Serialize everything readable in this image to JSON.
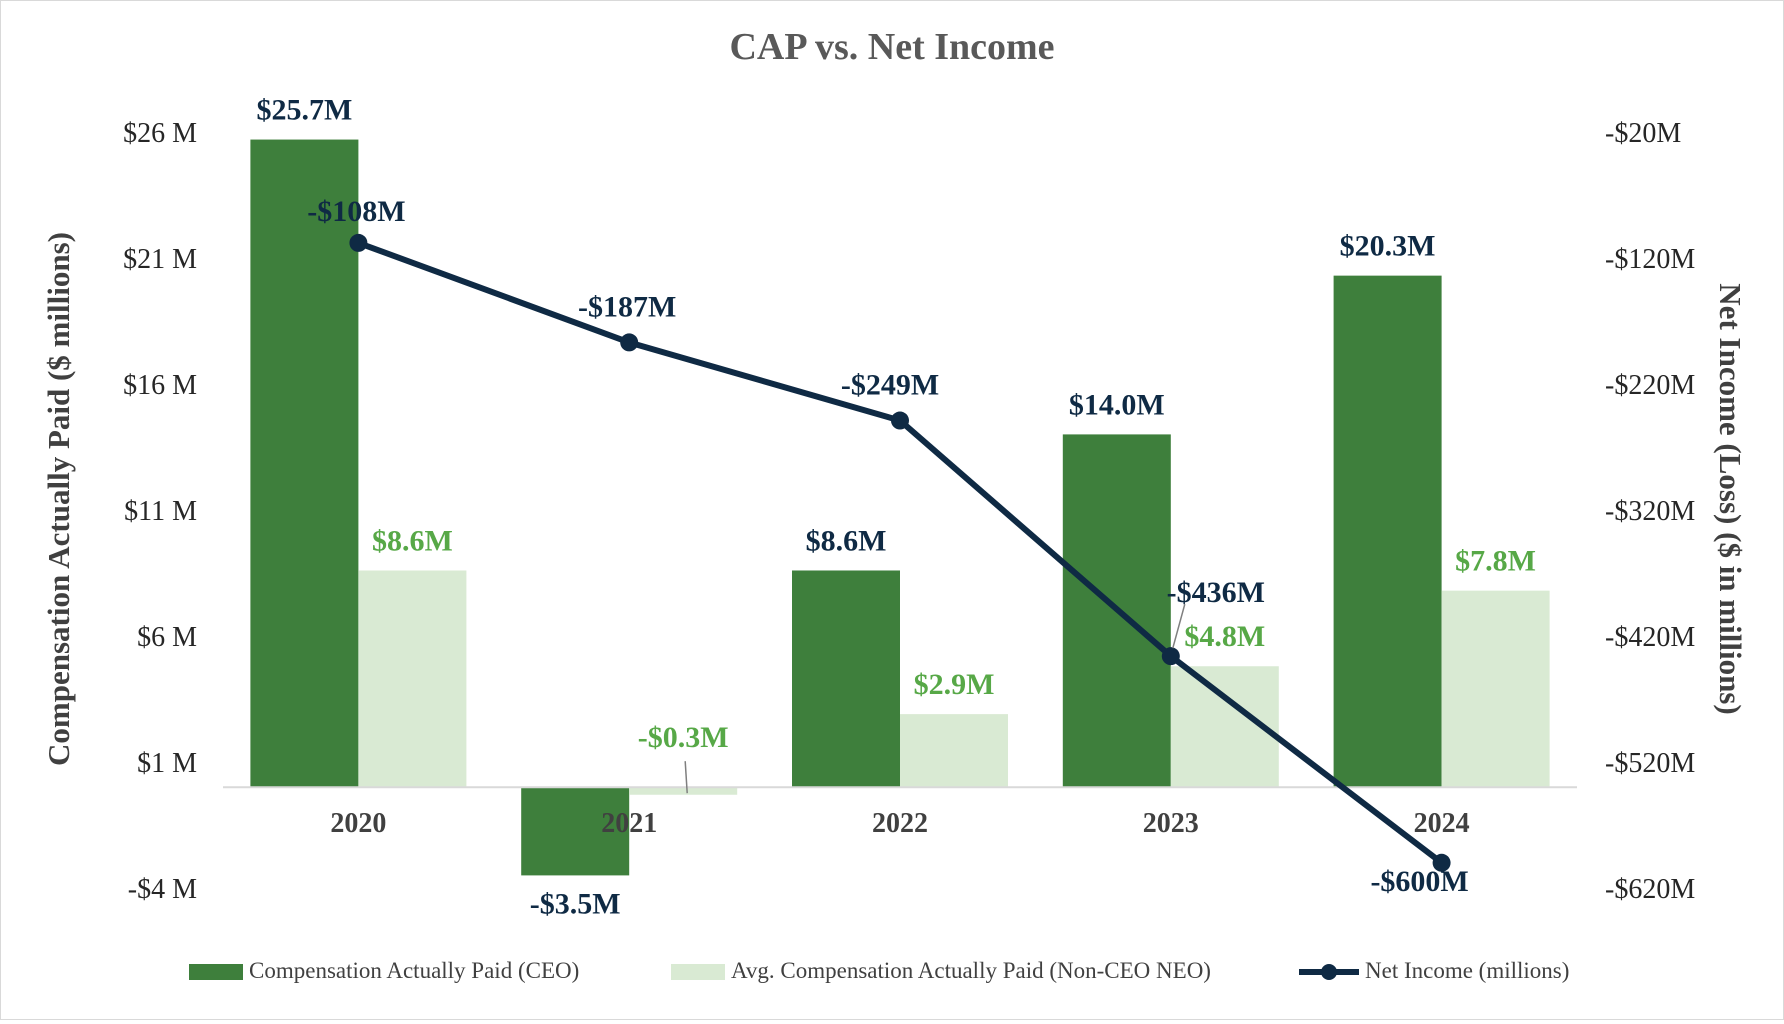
{
  "chart_data": {
    "type": "bar+line",
    "title": "CAP vs. Net Income",
    "categories": [
      "2020",
      "2021",
      "2022",
      "2023",
      "2024"
    ],
    "y_left": {
      "label": "Compensation Actually Paid ($ millions)",
      "range": [
        -4,
        26
      ],
      "ticks": [
        26,
        21,
        16,
        11,
        6,
        1,
        -4
      ],
      "tick_labels": [
        "$26 M",
        "$21 M",
        "$16 M",
        "$11 M",
        "$6 M",
        "$1 M",
        "-$4 M"
      ]
    },
    "y_right": {
      "label": "Net Income (Loss) ($ in millions)",
      "range": [
        -620,
        -20
      ],
      "ticks": [
        -20,
        -120,
        -220,
        -320,
        -420,
        -520,
        -620
      ],
      "tick_labels": [
        "-$20M",
        "-$120M",
        "-$220M",
        "-$320M",
        "-$420M",
        "-$520M",
        "-$620M"
      ]
    },
    "series": [
      {
        "name": "Compensation Actually Paid (CEO)",
        "type": "bar",
        "axis": "left",
        "color": "#3e7f3c",
        "values": [
          25.7,
          -3.5,
          8.6,
          14.0,
          20.3
        ],
        "labels": [
          "$25.7M",
          "-$3.5M",
          "$8.6M",
          "$14.0M",
          "$20.3M"
        ],
        "label_color": "#0f2a44"
      },
      {
        "name": "Avg. Compensation Actually Paid (Non-CEO NEO)",
        "type": "bar",
        "axis": "left",
        "color": "#d9ead3",
        "values": [
          8.6,
          -0.3,
          2.9,
          4.8,
          7.8
        ],
        "labels": [
          "$8.6M",
          "-$0.3M",
          "$2.9M",
          "$4.8M",
          "$7.8M"
        ],
        "label_color": "#57a847"
      },
      {
        "name": "Net Income (millions)",
        "type": "line",
        "axis": "right",
        "color": "#0f2a44",
        "values": [
          -108,
          -187,
          -249,
          -436,
          -600
        ],
        "labels": [
          "-$108M",
          "-$187M",
          "-$249M",
          "-$436M",
          "-$600M"
        ],
        "label_color": "#0f2a44"
      }
    ],
    "legend_position": "bottom"
  }
}
